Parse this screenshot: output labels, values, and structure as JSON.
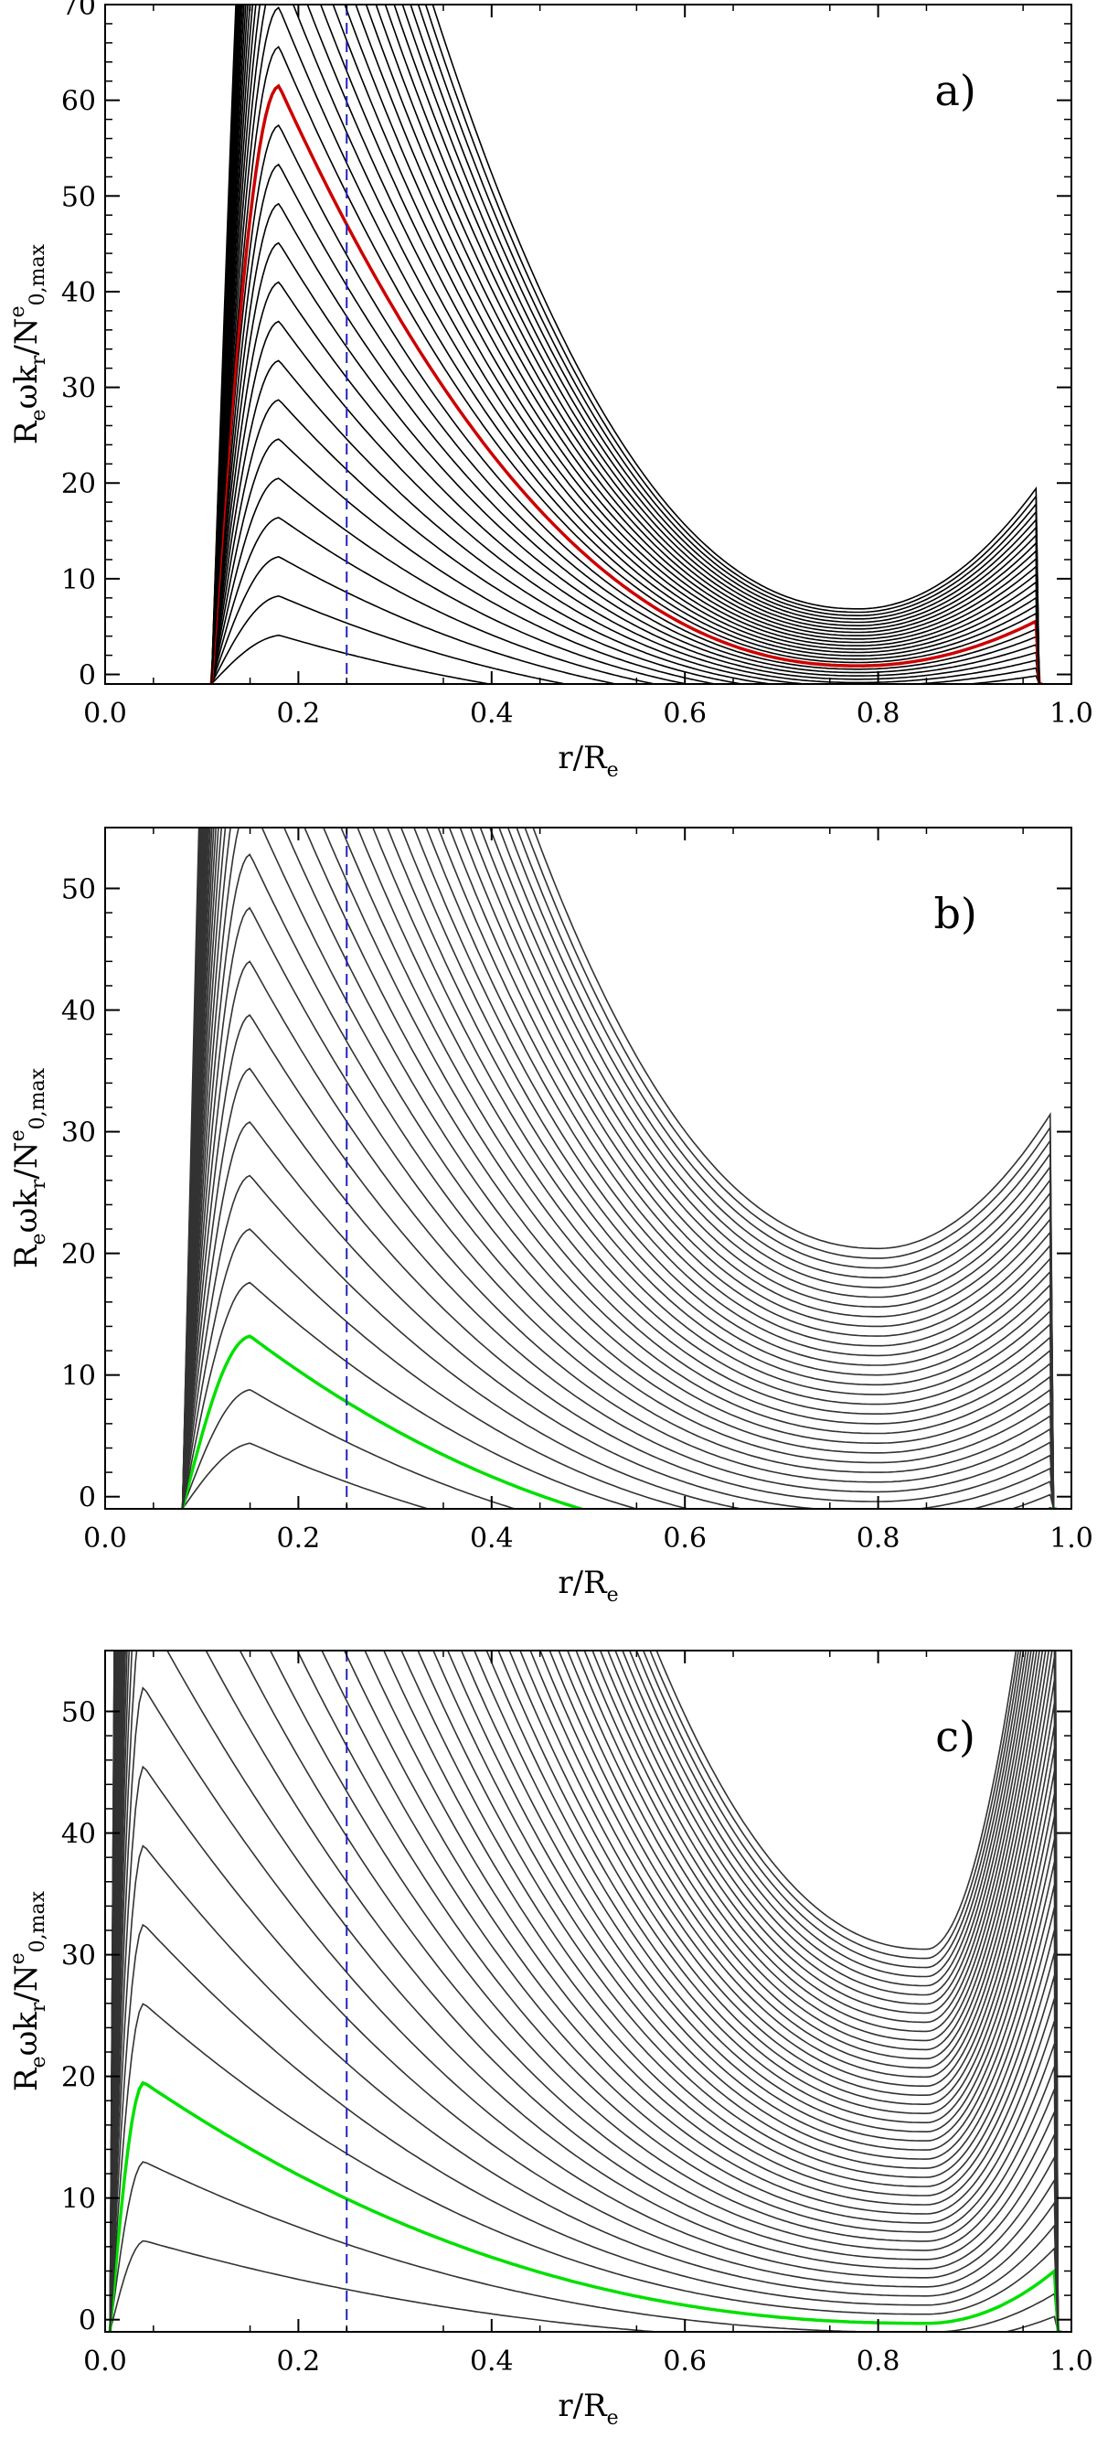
{
  "chart_data": [
    {
      "type": "line",
      "panel_label": "a)",
      "xlabel": "r/R",
      "xlabel_sub": "e",
      "ylabel": {
        "p1": "R",
        "s1": "e",
        "p2": "ωk",
        "s2": "r",
        "p3": "/N",
        "sup": "e",
        "s3": "0,max"
      },
      "xlim": [
        0.0,
        1.0
      ],
      "ylim": [
        -1,
        70
      ],
      "xticks": [
        "0.0",
        "0.2",
        "0.4",
        "0.6",
        "0.8",
        "1.0"
      ],
      "yticks": [
        "0",
        "10",
        "20",
        "30",
        "40",
        "50",
        "60",
        "70"
      ],
      "ytick_values": [
        0,
        10,
        20,
        30,
        40,
        50,
        60,
        70
      ],
      "dashed_vline_x": 0.25,
      "family": {
        "count": 32,
        "x_inner": 0.11,
        "x_peak": 0.18,
        "peak_step": 4.1,
        "x_min": 0.78,
        "base_min": -4.0,
        "min_step": 0.35,
        "outer_base": -6.0,
        "outer_step": 0.85,
        "x_edge": 0.97
      },
      "highlight": {
        "index": 14,
        "color": "#cc0000"
      },
      "colors": {
        "curves": "#000000",
        "dashed": "#2222bb"
      }
    },
    {
      "type": "line",
      "panel_label": "b)",
      "xlabel": "r/R",
      "xlabel_sub": "e",
      "ylabel": {
        "p1": "R",
        "s1": "e",
        "p2": "ωk",
        "s2": "r",
        "p3": "/N",
        "sup": "e",
        "s3": "0,max"
      },
      "xlim": [
        0.0,
        1.0
      ],
      "ylim": [
        -1,
        55
      ],
      "xticks": [
        "0.0",
        "0.2",
        "0.4",
        "0.6",
        "0.8",
        "1.0"
      ],
      "yticks": [
        "0",
        "10",
        "20",
        "30",
        "40",
        "50"
      ],
      "ytick_values": [
        0,
        10,
        20,
        30,
        40,
        50
      ],
      "dashed_vline_x": 0.25,
      "family": {
        "count": 34,
        "x_inner": 0.08,
        "x_peak": 0.15,
        "peak_step": 4.4,
        "x_min": 0.8,
        "base_min": -6.0,
        "min_step": 0.8,
        "outer_base": -4.0,
        "outer_step": 1.1,
        "x_edge": 0.985
      },
      "highlight": {
        "index": 2,
        "color": "#00e000"
      },
      "colors": {
        "curves": "#333333",
        "dashed": "#2222bb"
      }
    },
    {
      "type": "line",
      "panel_label": "c)",
      "xlabel": "r/R",
      "xlabel_sub": "e",
      "ylabel": {
        "p1": "R",
        "s1": "e",
        "p2": "ωk",
        "s2": "r",
        "p3": "/N",
        "sup": "e",
        "s3": "0,max"
      },
      "xlim": [
        0.0,
        1.0
      ],
      "ylim": [
        -1,
        55
      ],
      "xticks": [
        "0.0",
        "0.2",
        "0.4",
        "0.6",
        "0.8",
        "1.0"
      ],
      "yticks": [
        "0",
        "10",
        "20",
        "30",
        "40",
        "50"
      ],
      "ytick_values": [
        0,
        10,
        20,
        30,
        40,
        50
      ],
      "dashed_vline_x": 0.25,
      "family": {
        "count": 44,
        "x_inner": 0.005,
        "x_peak": 0.04,
        "peak_step": 6.5,
        "x_min": 0.85,
        "base_min": -1.8,
        "min_step": 0.75,
        "outer_base": 0.5,
        "outer_step": 2.0,
        "x_edge": 0.99
      },
      "highlight": {
        "index": 2,
        "color": "#00e000"
      },
      "colors": {
        "curves": "#333333",
        "dashed": "#2222bb"
      }
    }
  ]
}
